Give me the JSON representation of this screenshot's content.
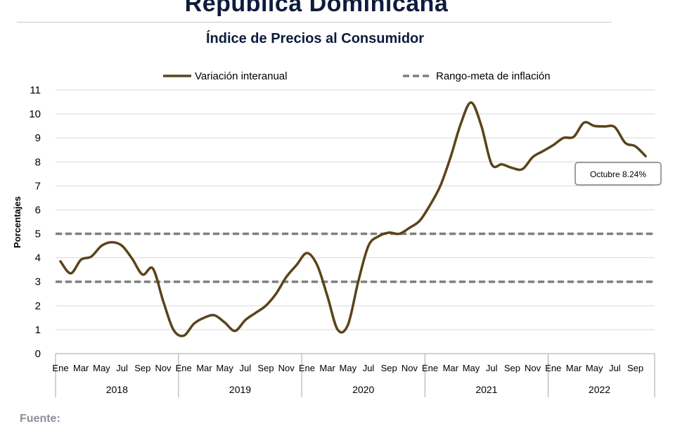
{
  "header": {
    "title": "República Dominicana",
    "subtitle": "Índice de Precios al Consumidor"
  },
  "footer": {
    "source_label": "Fuente:"
  },
  "colors": {
    "series": "#5a4419",
    "target": "#7f7f7f",
    "grid": "#d9d9d9"
  },
  "chart_data": {
    "type": "line",
    "ylabel": "Porcentajes",
    "ylim": [
      0,
      11
    ],
    "yticks": [
      0,
      1,
      2,
      3,
      4,
      5,
      6,
      7,
      8,
      9,
      10,
      11
    ],
    "grid": true,
    "legend_position": "top",
    "x_tick_labels": [
      "Ene",
      "Mar",
      "May",
      "Jul",
      "Sep",
      "Nov"
    ],
    "years": [
      "2018",
      "2019",
      "2020",
      "2021",
      "2022"
    ],
    "legend": {
      "series": "Variación interanual",
      "target": "Rango-meta de inflación"
    },
    "series": [
      {
        "name": "Variación interanual",
        "values": [
          3.85,
          3.35,
          3.92,
          4.05,
          4.5,
          4.65,
          4.5,
          3.95,
          3.3,
          3.55,
          2.2,
          1.0,
          0.75,
          1.25,
          1.5,
          1.6,
          1.3,
          0.95,
          1.4,
          1.7,
          2.0,
          2.5,
          3.2,
          3.7,
          4.2,
          3.7,
          2.4,
          1.0,
          1.2,
          3.0,
          4.5,
          4.9,
          5.05,
          5.0,
          5.25,
          5.55,
          6.2,
          7.0,
          8.2,
          9.6,
          10.48,
          9.5,
          7.9,
          7.9,
          7.75,
          7.7,
          8.2,
          8.45,
          8.7,
          9.0,
          9.05,
          9.64,
          9.5,
          9.48,
          9.45,
          8.8,
          8.65,
          8.24
        ]
      }
    ],
    "target_band": {
      "lower": 3,
      "upper": 5
    },
    "annotation": {
      "text": "Octubre 8.24%",
      "index": 57
    }
  }
}
